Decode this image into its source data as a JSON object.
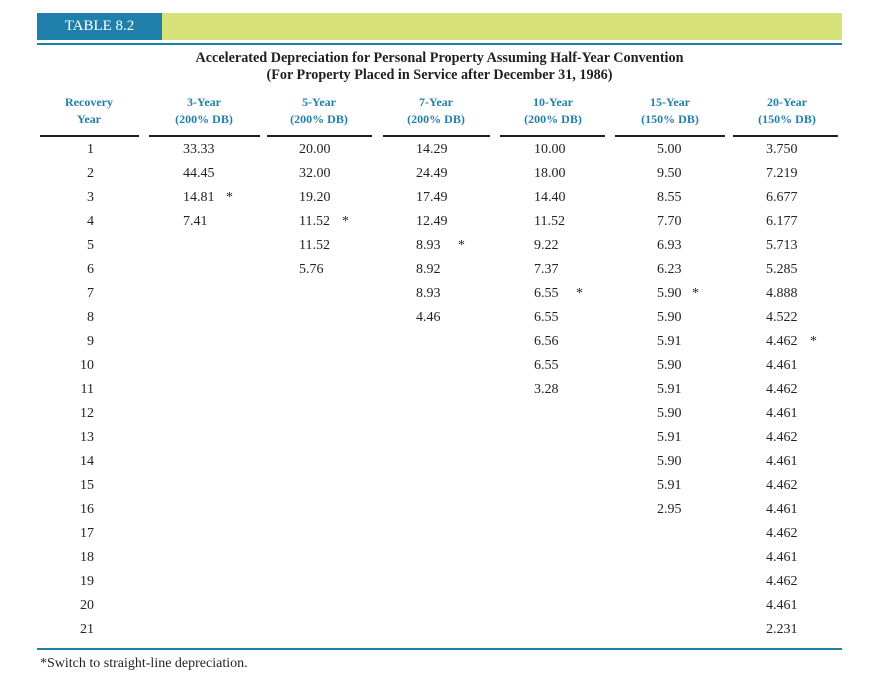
{
  "table_label": "TABLE 8.2",
  "title_line1": "Accelerated Depreciation for Personal Property Assuming Half-Year Convention",
  "title_line2": "(For Property Placed in Service after December 31, 1986)",
  "headers": [
    {
      "line1": "Recovery",
      "line2": "Year"
    },
    {
      "line1": "3-Year",
      "line2": "(200% DB)"
    },
    {
      "line1": "5-Year",
      "line2": "(200% DB)"
    },
    {
      "line1": "7-Year",
      "line2": "(200% DB)"
    },
    {
      "line1": "10-Year",
      "line2": "(200% DB)"
    },
    {
      "line1": "15-Year",
      "line2": "(150% DB)"
    },
    {
      "line1": "20-Year",
      "line2": "(150% DB)"
    }
  ],
  "years": [
    "1",
    "2",
    "3",
    "4",
    "5",
    "6",
    "7",
    "8",
    "9",
    "10",
    "11",
    "12",
    "13",
    "14",
    "15",
    "16",
    "17",
    "18",
    "19",
    "20",
    "21"
  ],
  "columns": [
    {
      "values": [
        "33.33",
        "44.45",
        "14.81",
        "7.41"
      ],
      "star_index": 2
    },
    {
      "values": [
        "20.00",
        "32.00",
        "19.20",
        "11.52",
        "11.52",
        "5.76"
      ],
      "star_index": 3
    },
    {
      "values": [
        "14.29",
        "24.49",
        "17.49",
        "12.49",
        "8.93",
        "8.92",
        "8.93",
        "4.46"
      ],
      "star_index": 4
    },
    {
      "values": [
        "10.00",
        "18.00",
        "14.40",
        "11.52",
        "9.22",
        "7.37",
        "6.55",
        "6.55",
        "6.56",
        "6.55",
        "3.28"
      ],
      "star_index": 6
    },
    {
      "values": [
        "5.00",
        "9.50",
        "8.55",
        "7.70",
        "6.93",
        "6.23",
        "5.90",
        "5.90",
        "5.91",
        "5.90",
        "5.91",
        "5.90",
        "5.91",
        "5.90",
        "5.91",
        "2.95"
      ],
      "star_index": 6
    },
    {
      "values": [
        "3.750",
        "7.219",
        "6.677",
        "6.177",
        "5.713",
        "5.285",
        "4.888",
        "4.522",
        "4.462",
        "4.461",
        "4.462",
        "4.461",
        "4.462",
        "4.461",
        "4.462",
        "4.461",
        "4.462",
        "4.461",
        "4.462",
        "4.461",
        "2.231"
      ],
      "star_index": 8
    }
  ],
  "star_symbol": "*",
  "footnote": "*Switch to straight-line depreciation."
}
